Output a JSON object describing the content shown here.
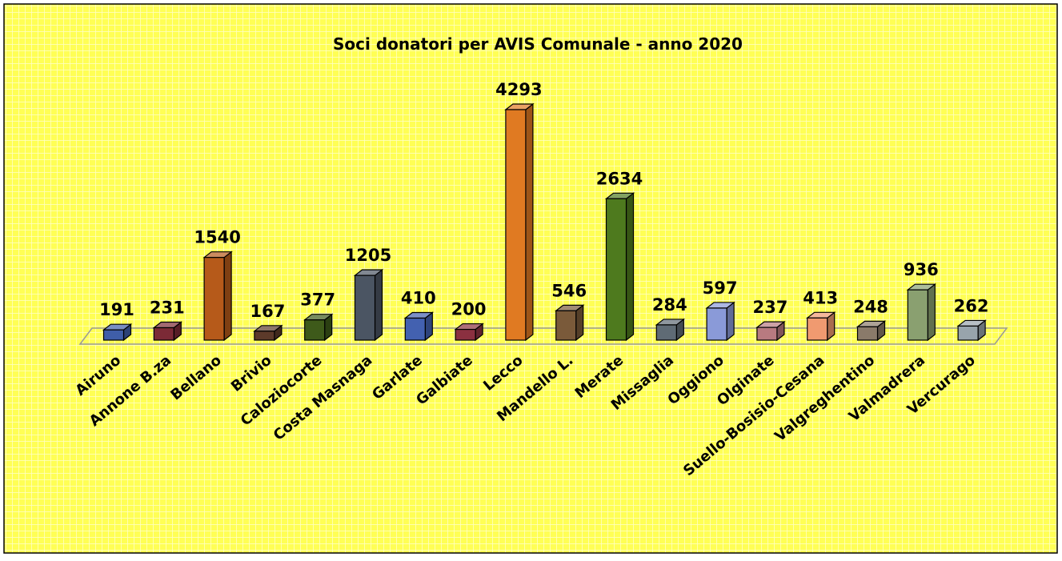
{
  "chart_data": {
    "type": "bar3d",
    "title": "Soci donatori per AVIS  Comunale - anno 2020",
    "categories": [
      "Airuno",
      "Annone B.za",
      "Bellano",
      "Brivio",
      "Caloziocorte",
      "Costa Masnaga",
      "Garlate",
      "Galbiate",
      "Lecco",
      "Mandello L.",
      "Merate",
      "Missaglia",
      "Oggiono",
      "Olginate",
      "Suello-Bosisio-Cesana",
      "Valgreghentino",
      "Valmadrera",
      "Vercurago"
    ],
    "values": [
      191,
      231,
      1540,
      167,
      377,
      1205,
      410,
      200,
      4293,
      546,
      2634,
      284,
      597,
      237,
      413,
      248,
      936,
      262
    ],
    "colors": [
      "#3f5ea8",
      "#7b2a36",
      "#b65a1a",
      "#5c3a2a",
      "#3e5a1a",
      "#4b5563",
      "#4361b0",
      "#8b3040",
      "#e07a22",
      "#7a5a3a",
      "#4e7a1e",
      "#5f6b75",
      "#8a9ad8",
      "#b87a80",
      "#f09a70",
      "#8a7a6a",
      "#8aa070",
      "#98a4ac"
    ]
  }
}
